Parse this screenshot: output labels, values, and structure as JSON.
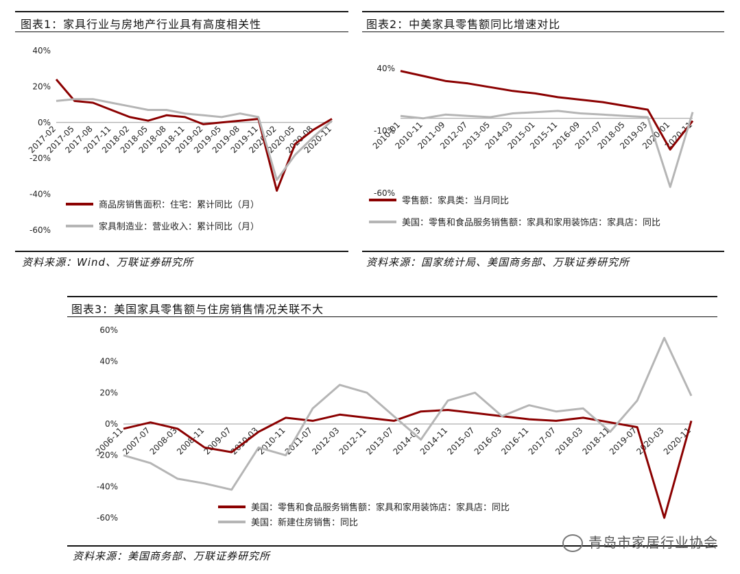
{
  "chart1": {
    "title": "图表1：家具行业与房地产行业具有高度相关性",
    "source": "资料来源：Wind、万联证券研究所",
    "yticks": [
      "40%",
      "20%",
      "0%",
      "-20%",
      "-40%",
      "-60%"
    ],
    "chart_data": {
      "type": "line",
      "ylim": [
        -60,
        40
      ],
      "x": [
        "2017-02",
        "2017-05",
        "2017-08",
        "2017-11",
        "2018-02",
        "2018-05",
        "2018-08",
        "2018-11",
        "2019-02",
        "2019-05",
        "2019-08",
        "2019-11",
        "2020-02",
        "2020-05",
        "2020-08",
        "2020-11"
      ],
      "series": [
        {
          "name": "商品房销售面积：住宅：累计同比（月）",
          "color": "#8b0000",
          "values": [
            24,
            12,
            11,
            7,
            3,
            1,
            4,
            3,
            -1,
            0,
            1,
            2,
            -38,
            -12,
            -4,
            2
          ]
        },
        {
          "name": "家具制造业：营业收入：累计同比（月）",
          "color": "#b5b5b5",
          "values": [
            12,
            13,
            13,
            11,
            9,
            7,
            7,
            5,
            4,
            3,
            5,
            3,
            -32,
            -18,
            -8,
            1
          ]
        }
      ]
    }
  },
  "chart2": {
    "title": "图表2：中美家具零售额同比增速对比",
    "source": "资料来源：国家统计局、美国商务部、万联证券研究所",
    "yticks": [
      "40%",
      "-10%",
      "-60%"
    ],
    "chart_data": {
      "type": "line",
      "ylim": [
        -60,
        40
      ],
      "x": [
        "2010-01",
        "2010-11",
        "2011-09",
        "2012-07",
        "2013-05",
        "2014-03",
        "2015-01",
        "2015-11",
        "2016-09",
        "2017-07",
        "2018-05",
        "2019-03",
        "2020-01",
        "2020-11"
      ],
      "series": [
        {
          "name": "零售额：家具类：当月同比",
          "color": "#8b0000",
          "values": [
            38,
            34,
            30,
            28,
            25,
            22,
            20,
            17,
            15,
            13,
            10,
            7,
            -25,
            -2
          ]
        },
        {
          "name": "美国：零售和食品服务销售额：家具和家用装饰店：家具店：同比",
          "color": "#b5b5b5",
          "values": [
            2,
            0,
            3,
            2,
            1,
            4,
            5,
            6,
            4,
            3,
            2,
            1,
            -55,
            5
          ]
        }
      ]
    }
  },
  "chart3": {
    "title": "图表3：美国家具零售额与住房销售情况关联不大",
    "source": "资料来源：美国商务部、万联证券研究所",
    "yticks": [
      "60%",
      "40%",
      "20%",
      "0%",
      "-20%",
      "-40%",
      "-60%"
    ],
    "chart_data": {
      "type": "line",
      "ylim": [
        -60,
        60
      ],
      "x": [
        "2006-11",
        "2007-07",
        "2008-03",
        "2008-11",
        "2009-07",
        "2010-03",
        "2010-11",
        "2011-07",
        "2012-03",
        "2012-11",
        "2013-07",
        "2014-03",
        "2014-11",
        "2015-07",
        "2016-03",
        "2016-11",
        "2017-07",
        "2018-03",
        "2018-11",
        "2019-07",
        "2020-03",
        "2020-11"
      ],
      "series": [
        {
          "name": "美国：零售和食品服务销售额：家具和家用装饰店：家具店：同比",
          "color": "#8b0000",
          "values": [
            -3,
            1,
            -3,
            -15,
            -18,
            -5,
            4,
            2,
            6,
            4,
            2,
            8,
            9,
            7,
            5,
            3,
            2,
            4,
            1,
            -2,
            -60,
            2
          ]
        },
        {
          "name": "美国：新建住房销售：同比",
          "color": "#b5b5b5",
          "values": [
            -20,
            -25,
            -35,
            -38,
            -42,
            -15,
            -20,
            10,
            25,
            20,
            5,
            -10,
            15,
            20,
            5,
            12,
            8,
            10,
            -5,
            15,
            55,
            18
          ]
        }
      ]
    }
  },
  "watermark": "青岛市家居行业协会"
}
